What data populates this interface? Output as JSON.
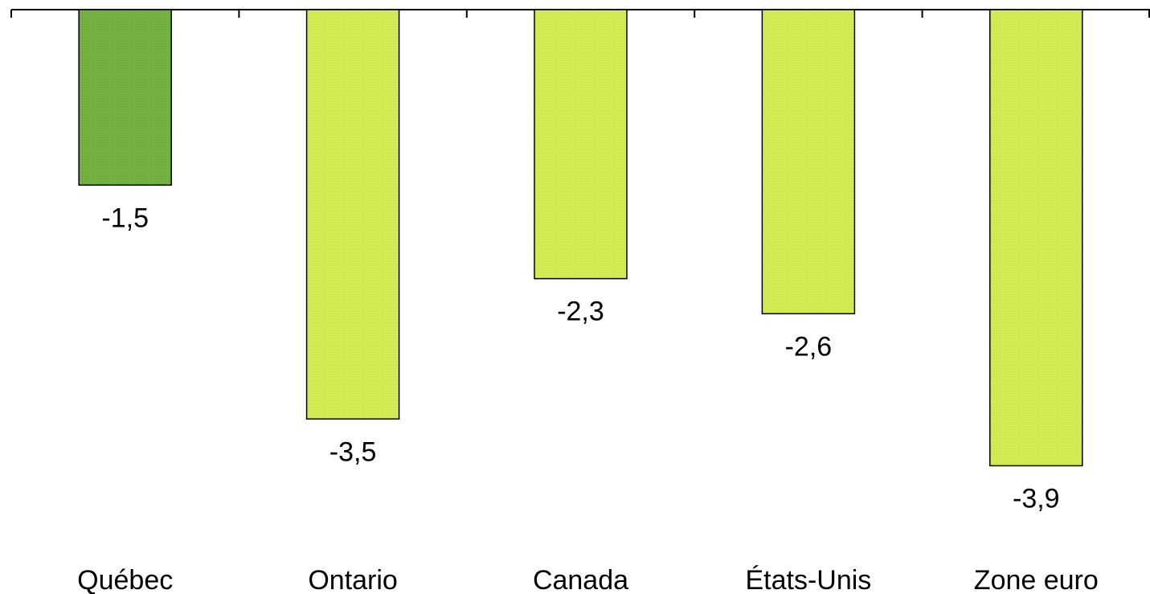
{
  "chart_data": {
    "type": "bar",
    "categories": [
      "Québec",
      "Ontario",
      "Canada",
      "États-Unis",
      "Zone euro"
    ],
    "values": [
      -1.5,
      -3.5,
      -2.3,
      -2.6,
      -3.9
    ],
    "value_labels": [
      "-1,5",
      "-3,5",
      "-2,3",
      "-2,6",
      "-3,9"
    ],
    "title": "",
    "xlabel": "",
    "ylabel": "",
    "ylim": [
      -5.0,
      0
    ],
    "grid": false,
    "legend": "none",
    "colors": {
      "highlight": "#7ab648",
      "highlight_pattern": "#5a9a2c",
      "default": "#d9ef5a",
      "default_pattern": "#b9d93a",
      "outline": "#000000",
      "axis": "#000000"
    },
    "highlight_index": 0
  }
}
